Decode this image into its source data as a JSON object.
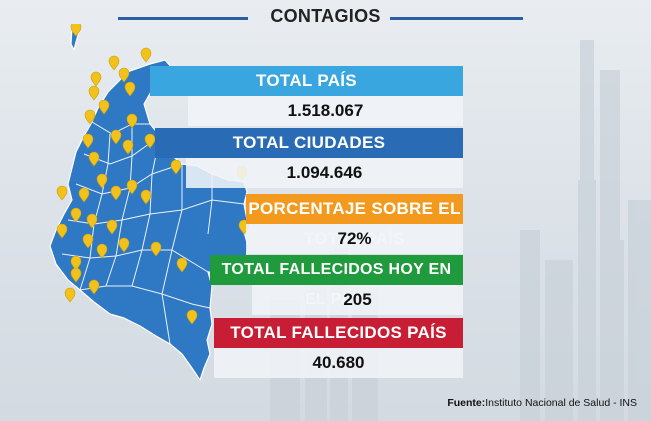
{
  "header": {
    "title": "CONTAGIOS"
  },
  "stats": [
    {
      "label": "TOTAL PAÍS",
      "value": "1.518.067",
      "color": "#3aa6e0"
    },
    {
      "label": "TOTAL CIUDADES",
      "value": "1.094.646",
      "color": "#2a6bb5"
    },
    {
      "label": "PORCENTAJE SOBRE EL TOTAL PAÍS",
      "value": "72%",
      "color": "#f39a1e"
    },
    {
      "label": "TOTAL FALLECIDOS HOY EN EL PAÍS",
      "value": "205",
      "color": "#1f9a3c"
    },
    {
      "label": "TOTAL FALLECIDOS PAÍS",
      "value": "40.680",
      "color": "#c81e35"
    }
  ],
  "footer": {
    "source_label": "Fuente:",
    "source_text": "Instituto Nacional de Salud - INS"
  },
  "map": {
    "fill_color": "#2f78c4",
    "marker_color": "#f2c21b"
  }
}
